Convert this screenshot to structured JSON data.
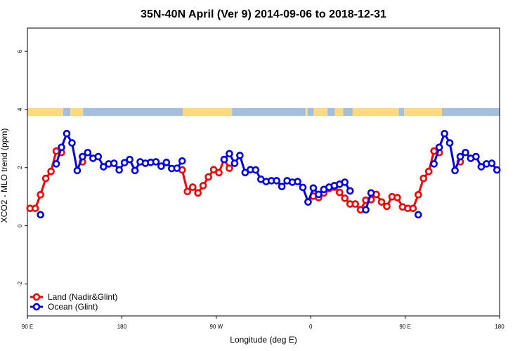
{
  "chart_data": {
    "type": "line",
    "title": "35N-40N April (Ver 9)   2014-09-06 to 2018-12-31",
    "xlabel": "Longitude (deg E)",
    "ylabel": "XCO2 - MLO trend (ppm)",
    "xlim": [
      90,
      540
    ],
    "ylim": [
      -3.1,
      6.8
    ],
    "x_ticks": [
      {
        "value": 90,
        "label": "90 E"
      },
      {
        "value": 180,
        "label": "180"
      },
      {
        "value": 270,
        "label": "90 W"
      },
      {
        "value": 360,
        "label": "0"
      },
      {
        "value": 450,
        "label": "90 E"
      },
      {
        "value": 540,
        "label": "180"
      }
    ],
    "y_ticks": [
      {
        "value": -2,
        "label": "-2"
      },
      {
        "value": 0,
        "label": "0"
      },
      {
        "value": 2,
        "label": "2"
      },
      {
        "value": 4,
        "label": "4"
      },
      {
        "value": 6,
        "label": "6"
      }
    ],
    "land_ocean_band": {
      "y_bottom": 3.78,
      "y_top": 4.05,
      "land_color": "#FFD980",
      "ocean_color": "#A4BEDD",
      "segments": [
        {
          "start": 90,
          "end": 124,
          "type": "land"
        },
        {
          "start": 124,
          "end": 131,
          "type": "ocean"
        },
        {
          "start": 131,
          "end": 143,
          "type": "land"
        },
        {
          "start": 143,
          "end": 238,
          "type": "ocean"
        },
        {
          "start": 238,
          "end": 285,
          "type": "land"
        },
        {
          "start": 285,
          "end": 355,
          "type": "ocean"
        },
        {
          "start": 355,
          "end": 357,
          "type": "land"
        },
        {
          "start": 357,
          "end": 363,
          "type": "ocean"
        },
        {
          "start": 363,
          "end": 376,
          "type": "land"
        },
        {
          "start": 376,
          "end": 383,
          "type": "ocean"
        },
        {
          "start": 383,
          "end": 391,
          "type": "land"
        },
        {
          "start": 391,
          "end": 400,
          "type": "ocean"
        },
        {
          "start": 400,
          "end": 444,
          "type": "land"
        },
        {
          "start": 444,
          "end": 449,
          "type": "ocean"
        },
        {
          "start": 449,
          "end": 485,
          "type": "land"
        },
        {
          "start": 485,
          "end": 540,
          "type": "ocean"
        }
      ]
    },
    "legend": {
      "position": "bottom-left",
      "entries": [
        {
          "label": "Land (Nadir&Glint)",
          "color": "#FF0000"
        },
        {
          "label": "Ocean (Glint)",
          "color": "#0000FF"
        }
      ]
    },
    "series": [
      {
        "name": "Land (Nadir&Glint)",
        "color": "#FF0000",
        "segments": [
          [
            [
              92.5,
              0.6
            ],
            [
              97.5,
              0.6
            ],
            [
              102.5,
              1.07
            ],
            [
              107.5,
              1.63
            ],
            [
              112.5,
              1.87
            ],
            [
              117.5,
              2.57
            ],
            [
              122.5,
              2.52
            ]
          ],
          [
            [
              142.5,
              2.2
            ]
          ],
          [
            [
              237.5,
              1.92
            ],
            [
              242.5,
              1.18
            ],
            [
              247.5,
              1.33
            ],
            [
              252.5,
              1.13
            ],
            [
              257.5,
              1.38
            ],
            [
              262.5,
              1.68
            ],
            [
              267.5,
              1.93
            ],
            [
              272.5,
              1.83
            ],
            [
              277.5,
              2.28
            ],
            [
              282.5,
              1.98
            ]
          ],
          [
            [
              357.5,
              0.82
            ],
            [
              362.5,
              1.02
            ],
            [
              367.5,
              0.97
            ],
            [
              372.5,
              1.13
            ],
            [
              377.5,
              1.28
            ],
            [
              382.5,
              1.33
            ],
            [
              387.5,
              1.15
            ],
            [
              392.5,
              0.95
            ],
            [
              397.5,
              0.75
            ],
            [
              402.5,
              0.75
            ],
            [
              407.5,
              0.55
            ],
            [
              412.5,
              0.88
            ],
            [
              417.5,
              0.9
            ],
            [
              422.5,
              1.08
            ],
            [
              427.5,
              0.82
            ],
            [
              432.5,
              0.67
            ],
            [
              437.5,
              1.0
            ],
            [
              442.5,
              0.97
            ],
            [
              447.5,
              0.65
            ],
            [
              452.5,
              0.6
            ],
            [
              457.5,
              0.6
            ],
            [
              462.5,
              1.07
            ],
            [
              467.5,
              1.63
            ],
            [
              472.5,
              1.87
            ],
            [
              477.5,
              2.57
            ],
            [
              482.5,
              2.52
            ]
          ],
          [
            [
              502.5,
              2.2
            ]
          ]
        ]
      },
      {
        "name": "Ocean (Glint)",
        "color": "#0000FF",
        "segments": [
          [
            [
              102.5,
              0.38
            ]
          ],
          [
            [
              117.5,
              2.13
            ],
            [
              122.5,
              2.7
            ],
            [
              127.5,
              3.17
            ],
            [
              132.5,
              2.85
            ],
            [
              137.5,
              1.9
            ],
            [
              142.5,
              2.38
            ],
            [
              147.5,
              2.52
            ],
            [
              152.5,
              2.32
            ],
            [
              157.5,
              2.38
            ],
            [
              162.5,
              2.03
            ],
            [
              167.5,
              2.13
            ],
            [
              172.5,
              2.15
            ],
            [
              177.5,
              1.92
            ],
            [
              182.5,
              2.17
            ],
            [
              187.5,
              2.28
            ],
            [
              192.5,
              1.9
            ],
            [
              197.5,
              2.2
            ],
            [
              202.5,
              2.15
            ],
            [
              207.5,
              2.18
            ],
            [
              212.5,
              2.2
            ],
            [
              217.5,
              2.05
            ],
            [
              222.5,
              2.18
            ],
            [
              227.5,
              1.97
            ],
            [
              232.5,
              1.98
            ],
            [
              237.5,
              2.23
            ]
          ],
          [
            [
              277.5,
              2.28
            ],
            [
              282.5,
              2.48
            ],
            [
              287.5,
              2.15
            ],
            [
              292.5,
              2.42
            ],
            [
              297.5,
              1.83
            ],
            [
              302.5,
              1.93
            ],
            [
              307.5,
              1.92
            ],
            [
              312.5,
              1.6
            ],
            [
              317.5,
              1.52
            ],
            [
              322.5,
              1.55
            ],
            [
              327.5,
              1.55
            ],
            [
              332.5,
              1.35
            ],
            [
              337.5,
              1.55
            ],
            [
              342.5,
              1.5
            ],
            [
              347.5,
              1.52
            ],
            [
              352.5,
              1.32
            ],
            [
              357.5,
              0.82
            ],
            [
              362.5,
              1.3
            ],
            [
              367.5,
              1.08
            ],
            [
              372.5,
              1.25
            ],
            [
              377.5,
              1.33
            ],
            [
              382.5,
              1.38
            ],
            [
              387.5,
              1.43
            ],
            [
              392.5,
              1.5
            ],
            [
              397.5,
              1.2
            ]
          ],
          [
            [
              412.5,
              0.55
            ],
            [
              417.5,
              1.13
            ]
          ],
          [
            [
              462.5,
              0.38
            ]
          ],
          [
            [
              477.5,
              2.13
            ],
            [
              482.5,
              2.7
            ],
            [
              487.5,
              3.17
            ],
            [
              492.5,
              2.85
            ],
            [
              497.5,
              1.9
            ],
            [
              502.5,
              2.38
            ],
            [
              507.5,
              2.52
            ],
            [
              512.5,
              2.32
            ],
            [
              517.5,
              2.38
            ],
            [
              522.5,
              2.03
            ],
            [
              527.5,
              2.13
            ],
            [
              532.5,
              2.15
            ],
            [
              537.5,
              1.92
            ]
          ]
        ]
      }
    ]
  }
}
